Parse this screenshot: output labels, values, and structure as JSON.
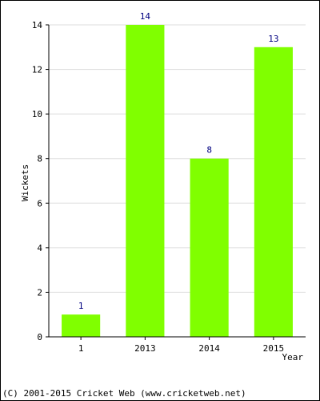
{
  "chart_data": {
    "type": "bar",
    "categories": [
      "1",
      "2013",
      "2014",
      "2015"
    ],
    "values": [
      1,
      14,
      8,
      13
    ],
    "title": "",
    "xlabel": "Year",
    "ylabel": "Wickets",
    "ylim": [
      0,
      14
    ],
    "yticks": [
      0,
      2,
      4,
      6,
      8,
      10,
      12,
      14
    ],
    "grid": true,
    "legend": "none",
    "bar_color": "#80ff00",
    "label_color": "#000080"
  },
  "footer": {
    "copyright": "(C) 2001-2015 Cricket Web (www.cricketweb.net)"
  }
}
